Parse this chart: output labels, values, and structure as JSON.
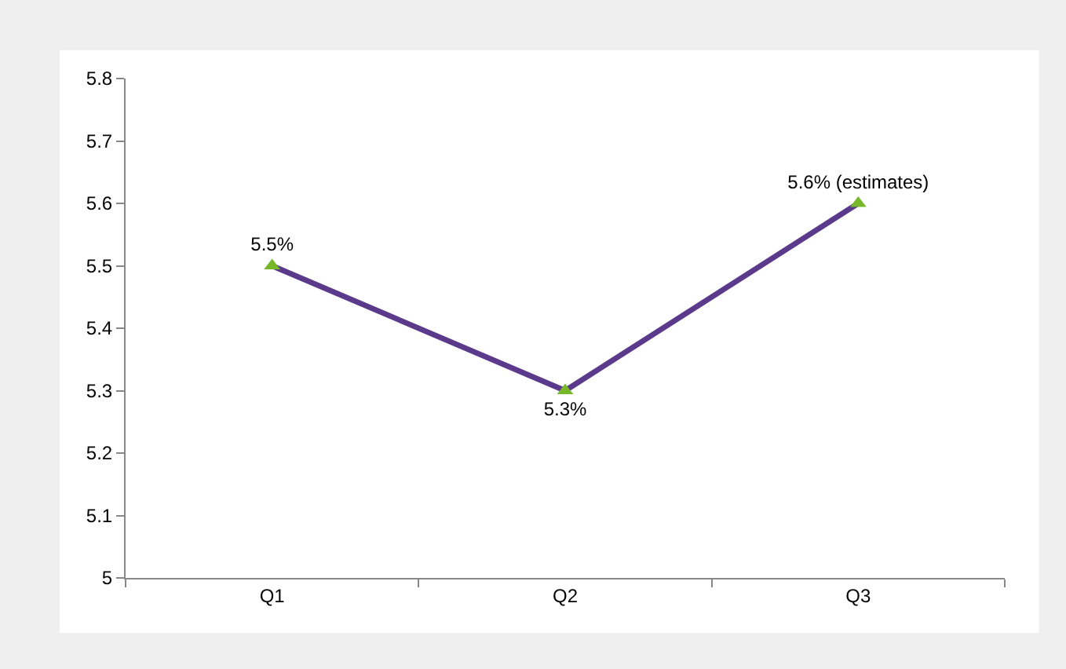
{
  "chart_data": {
    "type": "line",
    "categories": [
      "Q1",
      "Q2",
      "Q3"
    ],
    "series": [
      {
        "color": "#5b3a8c",
        "values": [
          5.5,
          5.3,
          5.6
        ],
        "value_labels": [
          "5.5%",
          "5.3%",
          "5.6% (estimates)"
        ]
      }
    ],
    "marker": "triangle",
    "ylim": [
      5,
      5.8
    ],
    "yticks": [
      5,
      5.1,
      5.2,
      5.3,
      5.4,
      5.5,
      5.6,
      5.7,
      5.8
    ]
  }
}
